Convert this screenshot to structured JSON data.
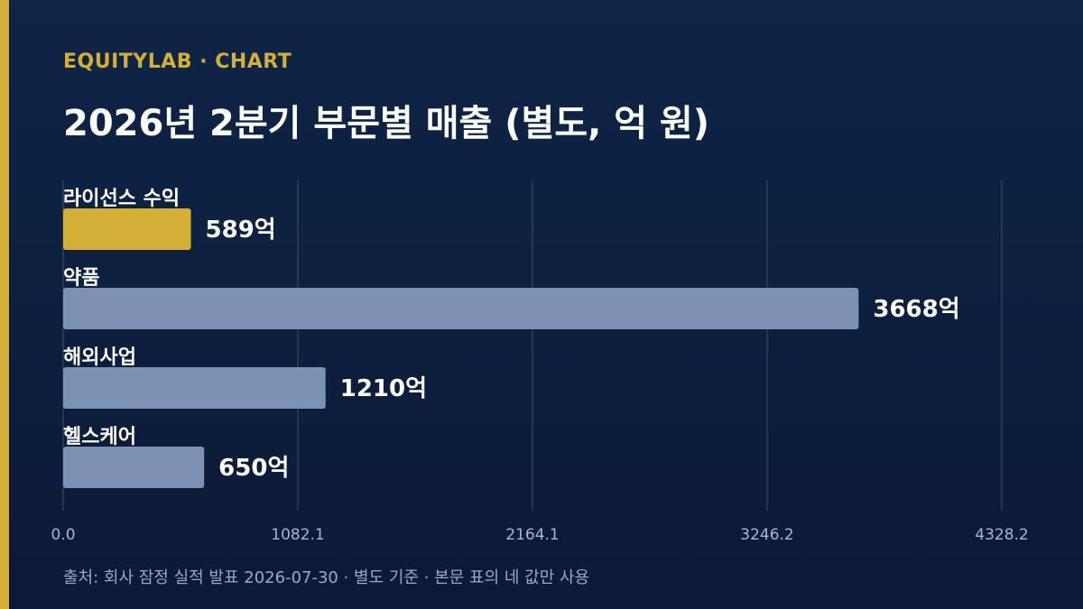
{
  "header": {
    "brand": "EQUITYLAB · CHART",
    "title": "2026년 2분기 부문별 매출 (별도, 억 원)"
  },
  "footer": {
    "source": "출처: 회사 잠정 실적 발표 2026-07-30 · 별도 기준 · 본문 표의 네 값만 사용"
  },
  "colors": {
    "highlight": "#d4af37",
    "bar": "#7b92b5",
    "accent": "#d4af37"
  },
  "chart_data": {
    "type": "bar",
    "orientation": "horizontal",
    "categories": [
      "라이선스 수익",
      "약품",
      "해외사업",
      "헬스케어"
    ],
    "values": [
      589,
      3668,
      1210,
      650
    ],
    "value_suffix": "억",
    "highlight_index": 0,
    "xlim": [
      0,
      4328.2
    ],
    "xticks": [
      "0.0",
      "1082.1",
      "2164.1",
      "3246.2",
      "4328.2"
    ],
    "grid": true,
    "legend": "none"
  }
}
